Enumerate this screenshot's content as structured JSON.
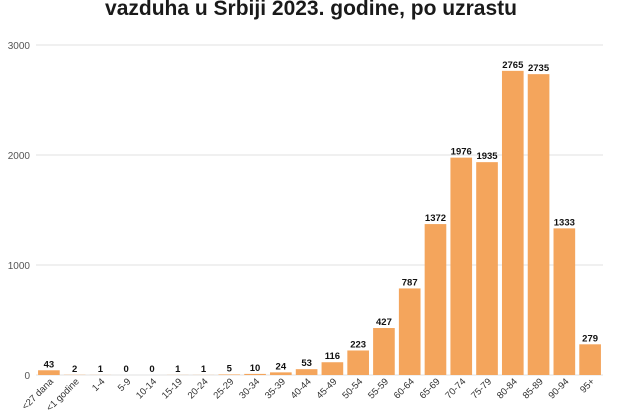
{
  "chart_data": {
    "type": "bar",
    "title": "vazduha u Srbiji 2023. godine, po uzrastu",
    "xlabel": "",
    "ylabel": "",
    "ylim": [
      0,
      3000
    ],
    "yticks": [
      0,
      1000,
      2000,
      3000
    ],
    "grid": true,
    "bar_color": "#F4A55C",
    "categories": [
      "<27 dana",
      "<1 godine",
      "1-4",
      "5-9",
      "10-14",
      "15-19",
      "20-24",
      "25-29",
      "30-34",
      "35-39",
      "40-44",
      "45-49",
      "50-54",
      "55-59",
      "60-64",
      "65-69",
      "70-74",
      "75-79",
      "80-84",
      "85-89",
      "90-94",
      "95+"
    ],
    "values": [
      43,
      2,
      1,
      0,
      0,
      1,
      1,
      5,
      10,
      24,
      53,
      116,
      223,
      427,
      787,
      1372,
      1976,
      1935,
      2765,
      2735,
      1333,
      279
    ]
  }
}
